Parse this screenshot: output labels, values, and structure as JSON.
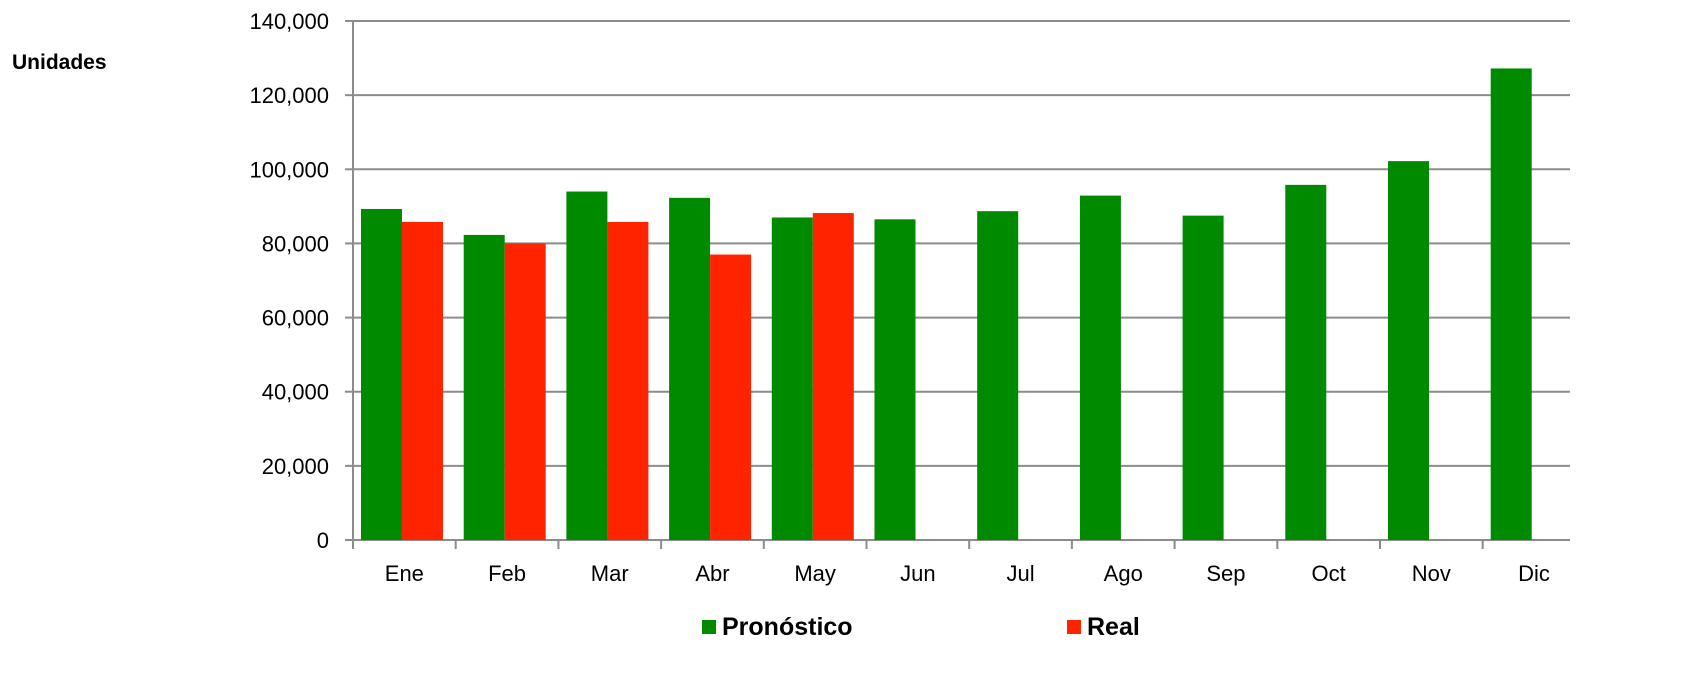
{
  "chart_data": {
    "type": "bar",
    "ylabel": "Unidades",
    "xlabel": "",
    "title": "",
    "categories": [
      "Ene",
      "Feb",
      "Mar",
      "Abr",
      "May",
      "Jun",
      "Jul",
      "Ago",
      "Sep",
      "Oct",
      "Nov",
      "Dic"
    ],
    "series": [
      {
        "name": "Pronóstico",
        "color": "#008a00",
        "values": [
          89300,
          82300,
          94000,
          92300,
          87000,
          86500,
          88700,
          92900,
          87500,
          95800,
          102200,
          127200
        ]
      },
      {
        "name": "Real",
        "color": "#ff2400",
        "values": [
          85800,
          80000,
          85800,
          77000,
          88200,
          null,
          null,
          null,
          null,
          null,
          null,
          null
        ]
      }
    ],
    "ylim": [
      0,
      140000
    ],
    "yticks": [
      "0",
      "20,000",
      "40,000",
      "60,000",
      "80,000",
      "100,000",
      "120,000",
      "140,000"
    ],
    "ytick_values": [
      0,
      20000,
      40000,
      60000,
      80000,
      100000,
      120000,
      140000
    ],
    "grid": true,
    "legend_position": "bottom"
  }
}
